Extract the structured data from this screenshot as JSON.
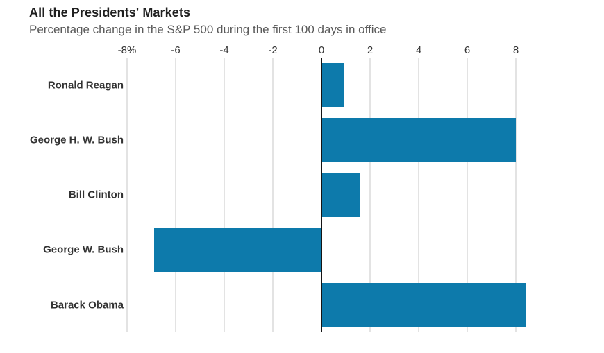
{
  "header": {
    "title": "All the Presidents' Markets",
    "subtitle": "Percentage change in the S&P 500 during the first 100 days in office"
  },
  "chart_data": {
    "type": "bar",
    "orientation": "horizontal",
    "title": "All the Presidents' Markets",
    "subtitle": "Percentage change in the S&P 500 during the first 100 days in office",
    "categories": [
      "Ronald Reagan",
      "George H. W. Bush",
      "Bill Clinton",
      "George W. Bush",
      "Barack Obama"
    ],
    "values": [
      0.9,
      8.0,
      1.6,
      -6.9,
      8.4
    ],
    "xlabel": "",
    "ylabel": "",
    "xlim": [
      -8,
      8
    ],
    "xticks": [
      -8,
      -6,
      -4,
      -2,
      0,
      2,
      4,
      6,
      8
    ],
    "xtick_labels": [
      "-8%",
      "-6",
      "-4",
      "-2",
      "0",
      "2",
      "4",
      "6",
      "8"
    ],
    "grid": true,
    "legend": false,
    "tick_position": "top",
    "colors": {
      "bar": "#0d7aab",
      "gridline": "#e3e3e3",
      "zero_line": "#141414",
      "title": "#202020",
      "subtitle": "#5a5a5a",
      "tick_label": "#333333",
      "category_label": "#333333",
      "background": "#ffffff"
    }
  }
}
